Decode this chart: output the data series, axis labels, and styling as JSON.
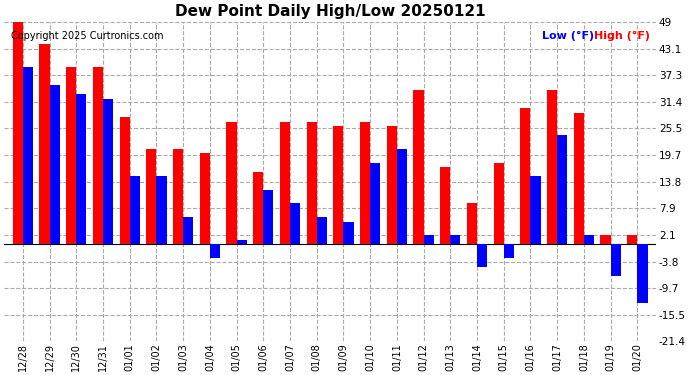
{
  "title": "Dew Point Daily High/Low 20250121",
  "copyright": "Copyright 2025 Curtronics.com",
  "legend_low": "Low (°F)",
  "legend_high": "High (°F)",
  "low_color": "#0000ff",
  "high_color": "#ff0000",
  "dates": [
    "12/28",
    "12/29",
    "12/30",
    "12/31",
    "01/01",
    "01/02",
    "01/03",
    "01/04",
    "01/05",
    "01/06",
    "01/07",
    "01/08",
    "01/09",
    "01/10",
    "01/11",
    "01/12",
    "01/13",
    "01/14",
    "01/15",
    "01/16",
    "01/17",
    "01/18",
    "01/19",
    "01/20"
  ],
  "high_values": [
    49.0,
    44.0,
    39.0,
    39.0,
    28.0,
    21.0,
    21.0,
    20.0,
    27.0,
    16.0,
    27.0,
    27.0,
    26.0,
    27.0,
    26.0,
    34.0,
    17.0,
    9.0,
    18.0,
    30.0,
    34.0,
    29.0,
    2.0,
    2.0
  ],
  "low_values": [
    39.0,
    35.0,
    33.0,
    32.0,
    15.0,
    15.0,
    6.0,
    -3.0,
    1.0,
    12.0,
    9.0,
    6.0,
    5.0,
    18.0,
    21.0,
    2.0,
    2.0,
    -5.0,
    -3.0,
    15.0,
    24.0,
    2.0,
    -7.0,
    -13.0
  ],
  "ylim": [
    -21.4,
    49.0
  ],
  "yticks": [
    49.0,
    43.1,
    37.3,
    31.4,
    25.5,
    19.7,
    13.8,
    7.9,
    2.1,
    -3.8,
    -9.7,
    -15.5,
    -21.4
  ],
  "background_color": "#ffffff",
  "grid_color": "#aaaaaa",
  "bar_width": 0.38,
  "figsize": [
    6.9,
    3.75
  ],
  "dpi": 100
}
